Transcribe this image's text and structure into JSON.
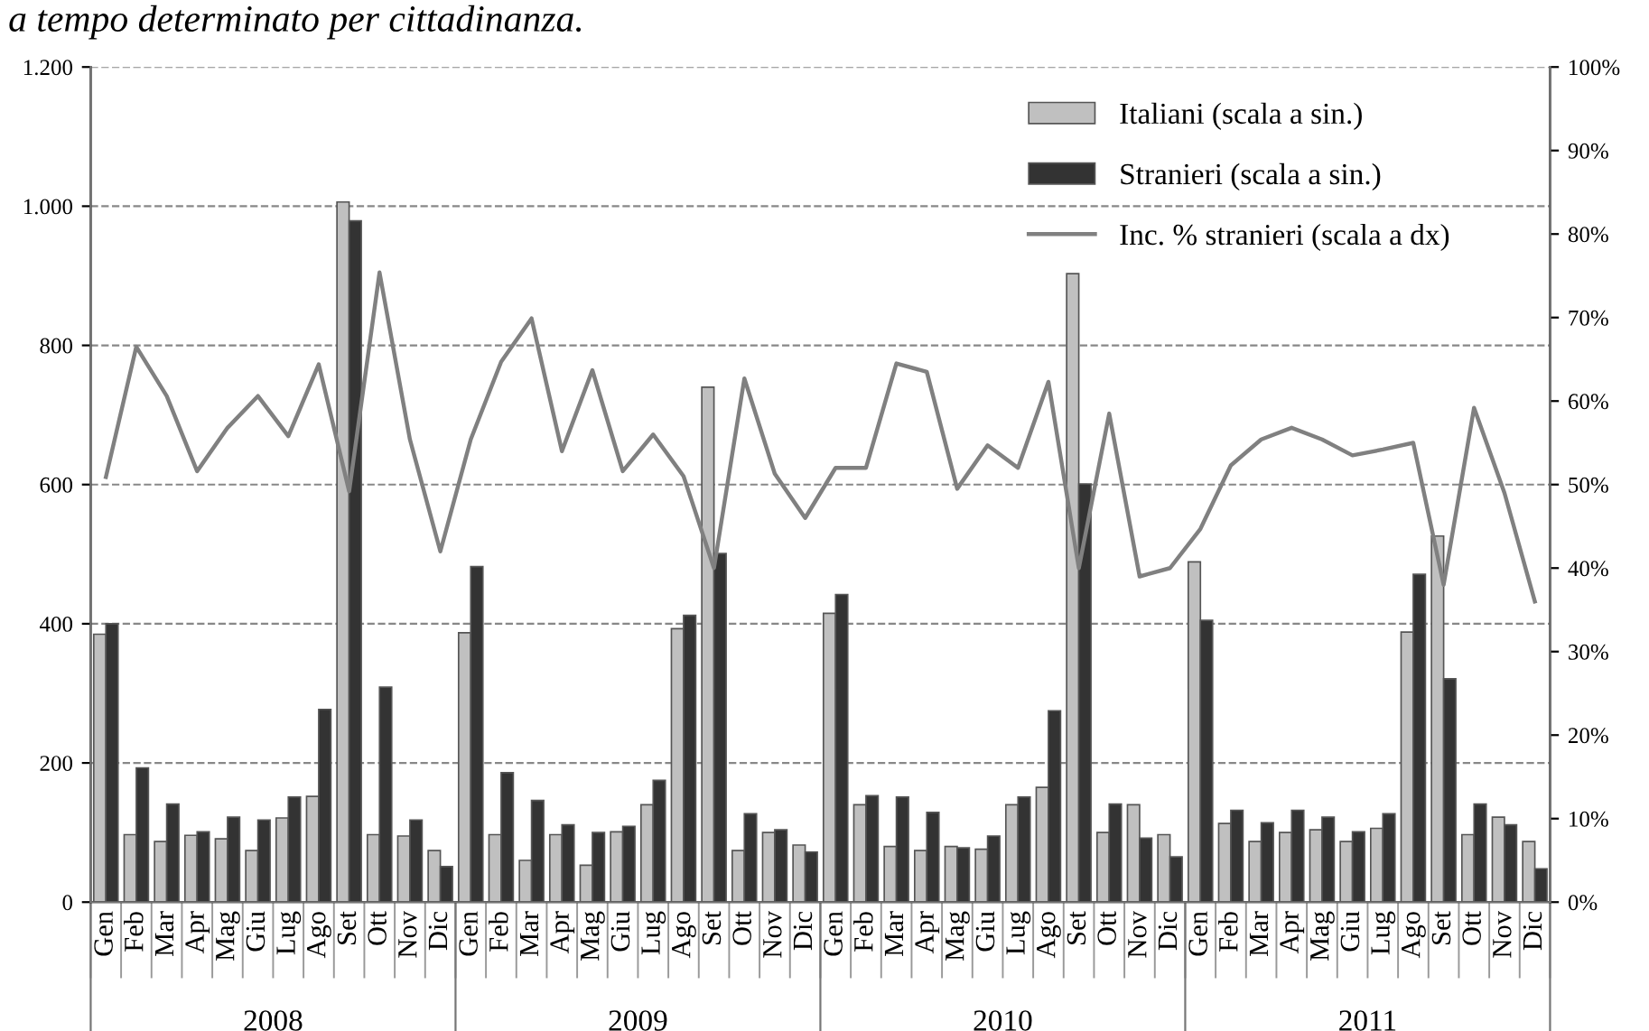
{
  "chart_data": {
    "type": "bar",
    "title": "a tempo determinato per cittadinanza.",
    "categories": [
      "Gen",
      "Feb",
      "Mar",
      "Apr",
      "Mag",
      "Giu",
      "Lug",
      "Ago",
      "Set",
      "Ott",
      "Nov",
      "Dic",
      "Gen",
      "Feb",
      "Mar",
      "Apr",
      "Mag",
      "Giu",
      "Lug",
      "Ago",
      "Set",
      "Ott",
      "Nov",
      "Dic",
      "Gen",
      "Feb",
      "Mar",
      "Apr",
      "Mag",
      "Giu",
      "Lug",
      "Ago",
      "Set",
      "Ott",
      "Nov",
      "Dic",
      "Gen",
      "Feb",
      "Mar",
      "Apr",
      "Mag",
      "Giu",
      "Lug",
      "Ago",
      "Set",
      "Ott",
      "Nov",
      "Dic"
    ],
    "annotations": [
      "2008",
      "2009",
      "2010",
      "2011"
    ],
    "series": [
      {
        "name": "Italiani (scala a sin.)",
        "color": "#c0c0c0",
        "values": [
          385,
          97,
          87,
          96,
          91,
          74,
          121,
          152,
          1006,
          97,
          95,
          74,
          387,
          97,
          60,
          97,
          53,
          101,
          140,
          393,
          740,
          74,
          100,
          82,
          415,
          140,
          80,
          74,
          80,
          76,
          140,
          165,
          903,
          100,
          140,
          97,
          489,
          113,
          87,
          100,
          104,
          87,
          106,
          388,
          526,
          97,
          122,
          87
        ]
      },
      {
        "name": "Stranieri (scala a sin.)",
        "color": "#333333",
        "values": [
          400,
          193,
          141,
          101,
          122,
          118,
          151,
          277,
          979,
          309,
          118,
          51,
          482,
          186,
          146,
          111,
          100,
          109,
          175,
          412,
          501,
          127,
          104,
          72,
          442,
          153,
          151,
          129,
          78,
          95,
          151,
          275,
          601,
          141,
          92,
          65,
          405,
          132,
          114,
          132,
          122,
          101,
          127,
          471,
          321,
          141,
          111,
          48
        ]
      },
      {
        "name": "Inc. % stranieri (scala a dx)",
        "type": "line",
        "axis": "y2",
        "color": "#808080",
        "values": [
          50.9,
          66.5,
          60.6,
          51.6,
          56.8,
          60.6,
          55.8,
          64.4,
          49.2,
          75.4,
          55.4,
          42,
          55.4,
          64.7,
          69.9,
          54,
          63.7,
          51.6,
          56,
          51,
          40,
          62.7,
          51.3,
          46,
          52,
          52,
          64.5,
          63.5,
          49.5,
          54.7,
          52,
          62.3,
          40,
          58.5,
          39,
          40,
          44.7,
          52.3,
          55.4,
          56.8,
          55.4,
          53.5,
          54.2,
          55,
          38,
          59.2,
          49,
          36
        ]
      }
    ],
    "ylim": [
      0,
      1200
    ],
    "yticks": [
      {
        "value": 0,
        "label": "0"
      },
      {
        "value": 200,
        "label": "200"
      },
      {
        "value": 400,
        "label": "400"
      },
      {
        "value": 600,
        "label": "600"
      },
      {
        "value": 800,
        "label": "800"
      },
      {
        "value": 1000,
        "label": "1.000"
      },
      {
        "value": 1200,
        "label": "1.200"
      }
    ],
    "y2lim": [
      0,
      100
    ],
    "y2ticks": [
      {
        "value": 0,
        "label": "0%"
      },
      {
        "value": 10,
        "label": "10%"
      },
      {
        "value": 20,
        "label": "20%"
      },
      {
        "value": 30,
        "label": "30%"
      },
      {
        "value": 40,
        "label": "40%"
      },
      {
        "value": 50,
        "label": "50%"
      },
      {
        "value": 60,
        "label": "60%"
      },
      {
        "value": 70,
        "label": "70%"
      },
      {
        "value": 80,
        "label": "80%"
      },
      {
        "value": 90,
        "label": "90%"
      },
      {
        "value": 100,
        "label": "100%"
      }
    ],
    "grid": "y",
    "legend": "top right",
    "line_style": "solid",
    "marker": "none"
  }
}
